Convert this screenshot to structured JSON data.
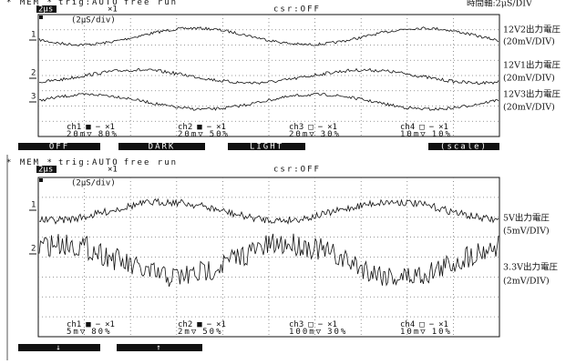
{
  "caption": "時間軸:2μS/DIV",
  "panels": [
    {
      "mode": "* MEM *",
      "trigger": "trig:AUTO",
      "run": "free run",
      "timebase": "2μs",
      "zoom": "×1",
      "cursor": "csr:OFF",
      "div": "(2μS/div)",
      "markers": [
        "1",
        "2",
        "3"
      ],
      "labels": [
        {
          "name": "12V2出力電圧",
          "scale": "(20mV/DIV)"
        },
        {
          "name": "12V1出力電圧",
          "scale": "(20mV/DIV)"
        },
        {
          "name": "12V3出力電圧",
          "scale": "(20mV/DIV)"
        }
      ],
      "channels": [
        {
          "name": "ch1",
          "box": "■",
          "line": "−",
          "probe": "×1",
          "volts": "20m▽",
          "pos": "80%"
        },
        {
          "name": "ch2",
          "box": "■",
          "line": "−",
          "probe": "×1",
          "volts": "20m▽",
          "pos": "50%"
        },
        {
          "name": "ch3",
          "box": "□",
          "line": "−",
          "probe": "×1",
          "volts": "20m▽",
          "pos": "30%"
        },
        {
          "name": "ch4",
          "box": "□",
          "line": "−",
          "probe": "×1",
          "volts": "10m▽",
          "pos": "10%"
        }
      ],
      "menu": [
        "OFF",
        "DARK",
        "LIGHT",
        "(scale)"
      ]
    },
    {
      "mode": "* MEM *",
      "trigger": "trig:AUTO",
      "run": "free run",
      "timebase": "2μs",
      "zoom": "×1",
      "cursor": "csr:OFF",
      "div": "(2μS/div)",
      "markers": [
        "1",
        "2"
      ],
      "labels": [
        {
          "name": "5V出力電圧",
          "scale": "(5mV/DIV)"
        },
        {
          "name": "3.3V出力電圧",
          "scale": "(2mV/DIV)"
        }
      ],
      "channels": [
        {
          "name": "ch1",
          "box": "■",
          "line": "−",
          "probe": "×1",
          "volts": "5m▽",
          "pos": "80%"
        },
        {
          "name": "ch2",
          "box": "■",
          "line": "−",
          "probe": "×1",
          "volts": "2m▽",
          "pos": "50%"
        },
        {
          "name": "ch3",
          "box": "□",
          "line": "−",
          "probe": "×1",
          "volts": "100m▽",
          "pos": "30%"
        },
        {
          "name": "ch4",
          "box": "□",
          "line": "−",
          "probe": "×1",
          "volts": "10m▽",
          "pos": "10%"
        }
      ],
      "menu": [
        "↓",
        "↑"
      ]
    }
  ]
}
